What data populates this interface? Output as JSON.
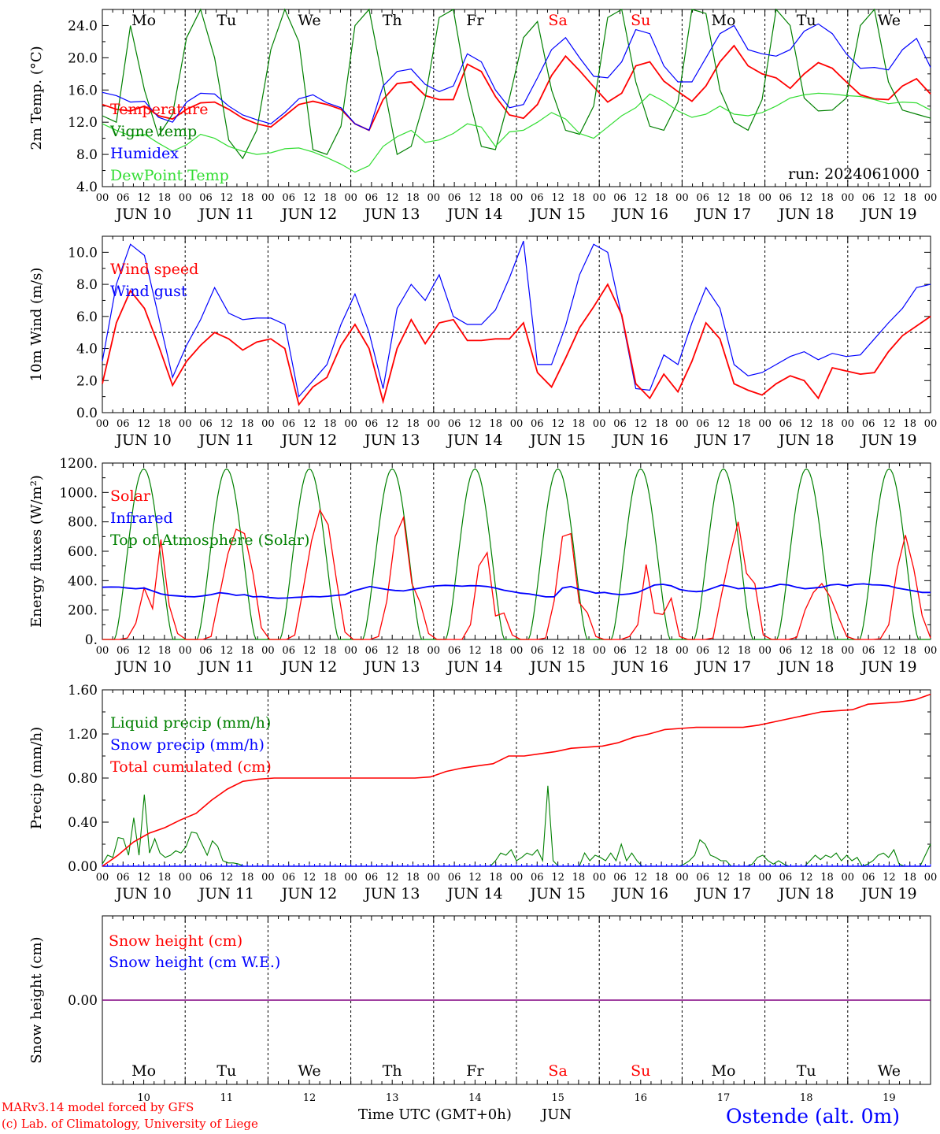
{
  "footer": {
    "credit_line1": "MARv3.14 model forced by GFS",
    "credit_line2": "(c) Lab. of Climatology, University of Liege",
    "time_label": "Time UTC (GMT+0h)",
    "month_label": "JUN",
    "location": "Ostende (alt. 0m)"
  },
  "colors": {
    "red": "#ff0000",
    "blue": "#0000ff",
    "dark_green": "#008000",
    "light_green": "#33dd33",
    "weekday_normal": "#000000",
    "weekday_weekend": "#ff0000",
    "snow_line": "#800080"
  },
  "days": {
    "weekdays": [
      "Mo",
      "Tu",
      "We",
      "Th",
      "Fr",
      "Sa",
      "Su",
      "Mo",
      "Tu",
      "We"
    ],
    "weekend_flags": [
      false,
      false,
      false,
      false,
      false,
      true,
      true,
      false,
      false,
      false
    ],
    "date_labels": [
      "JUN 10",
      "JUN 11",
      "JUN 12",
      "JUN 13",
      "JUN 14",
      "JUN 15",
      "JUN 16",
      "JUN 17",
      "JUN 18",
      "JUN 19"
    ],
    "day_numbers": [
      "10",
      "11",
      "12",
      "13",
      "14",
      "15",
      "16",
      "17",
      "18",
      "19"
    ],
    "hour_ticks": [
      "00",
      "06",
      "12",
      "18"
    ],
    "final_tick": "00"
  },
  "chart_data": [
    {
      "id": "temp",
      "type": "line",
      "ylabel": "2m Temp. (°C)",
      "ylim": [
        4.0,
        26.0
      ],
      "yticks": [
        "4.0",
        "8.0",
        "12.0",
        "16.0",
        "20.0",
        "24.0"
      ],
      "ytick_values": [
        4,
        8,
        12,
        16,
        20,
        24
      ],
      "annotation": "run: 2024061000",
      "x_hours_step": 6,
      "series": [
        {
          "name": "Temperature",
          "color": "#ff0000",
          "values": [
            14.2,
            13.6,
            13.4,
            14.0,
            12.8,
            12.4,
            13.6,
            14.4,
            14.5,
            13.6,
            12.5,
            11.8,
            11.4,
            12.8,
            14.2,
            14.6,
            14.2,
            13.6,
            11.8,
            11.0,
            14.8,
            16.8,
            17.0,
            15.3,
            14.8,
            14.8,
            19.2,
            18.3,
            15.2,
            12.9,
            12.5,
            14.2,
            17.8,
            20.2,
            18.4,
            16.4,
            14.5,
            15.6,
            19.0,
            19.5,
            17.1,
            15.8,
            14.6,
            16.5,
            19.5,
            21.5,
            19.0,
            18.0,
            17.5,
            16.2,
            18.0,
            19.4,
            18.7,
            17.0,
            15.4,
            14.9,
            14.8,
            16.5,
            17.4,
            15.5
          ]
        },
        {
          "name": "Vigne temp",
          "color": "#008000",
          "values": [
            12.8,
            12.0,
            24.0,
            16.0,
            10.3,
            13.0,
            22.5,
            29.0,
            20.0,
            9.8,
            7.5,
            11.0,
            21.0,
            29.0,
            22.0,
            8.6,
            8.0,
            11.5,
            24.0,
            26.0,
            17.0,
            8.0,
            9.0,
            15.0,
            25.0,
            26.0,
            16.0,
            9.0,
            8.6,
            15.0,
            22.5,
            24.5,
            16.0,
            11.0,
            10.5,
            14.0,
            25.0,
            27.0,
            17.0,
            11.5,
            11.0,
            14.5,
            26.5,
            25.5,
            16.0,
            12.0,
            11.0,
            14.8,
            27.0,
            24.0,
            15.0,
            13.4,
            13.5,
            15.0,
            24.0,
            26.0,
            17.0,
            13.5,
            13.0,
            12.5
          ]
        },
        {
          "name": "Humidex",
          "color": "#0000ff",
          "values": [
            15.7,
            15.3,
            14.5,
            14.6,
            12.6,
            12.0,
            14.5,
            15.6,
            15.5,
            14.0,
            12.9,
            12.3,
            11.8,
            13.2,
            14.9,
            15.4,
            14.4,
            13.8,
            11.8,
            11.0,
            16.5,
            18.3,
            18.6,
            16.7,
            15.8,
            16.5,
            20.5,
            19.5,
            16.0,
            13.8,
            14.2,
            17.5,
            21.0,
            22.5,
            20.0,
            17.7,
            17.5,
            19.5,
            23.5,
            23.0,
            19.0,
            17.0,
            17.0,
            20.0,
            23.0,
            24.0,
            21.0,
            20.5,
            20.2,
            21.0,
            23.3,
            24.2,
            23.0,
            20.5,
            18.7,
            18.8,
            18.5,
            21.0,
            22.4,
            18.8
          ]
        },
        {
          "name": "DewPoint Temp",
          "color": "#33dd33",
          "values": [
            11.8,
            11.0,
            10.3,
            10.5,
            9.4,
            8.4,
            9.2,
            10.5,
            10.0,
            9.0,
            8.4,
            8.0,
            8.2,
            8.7,
            8.8,
            8.3,
            7.6,
            6.8,
            5.8,
            6.6,
            9.0,
            10.2,
            11.0,
            9.5,
            9.8,
            10.6,
            11.8,
            11.4,
            9.0,
            10.8,
            11.0,
            12.0,
            13.2,
            12.4,
            10.6,
            10.0,
            11.4,
            12.8,
            13.8,
            15.5,
            14.6,
            13.4,
            12.6,
            13.0,
            14.0,
            13.0,
            12.8,
            13.2,
            14.0,
            15.0,
            15.4,
            15.6,
            15.5,
            15.3,
            15.2,
            14.8,
            14.3,
            14.5,
            14.4,
            13.5
          ]
        }
      ]
    },
    {
      "id": "wind",
      "type": "line",
      "ylabel": "10m Wind (m/s)",
      "ylim": [
        0.0,
        11.0
      ],
      "yticks": [
        "0.0",
        "2.0",
        "4.0",
        "6.0",
        "8.0",
        "10.0"
      ],
      "ytick_values": [
        0,
        2,
        4,
        6,
        8,
        10
      ],
      "reference_line": 5.0,
      "x_hours_step": 6,
      "series": [
        {
          "name": "Wind speed",
          "color": "#ff0000",
          "values": [
            1.8,
            5.6,
            7.6,
            6.5,
            4.2,
            1.7,
            3.2,
            4.2,
            5.0,
            4.6,
            3.9,
            4.4,
            4.6,
            4.0,
            0.5,
            1.6,
            2.2,
            4.2,
            5.5,
            4.0,
            0.7,
            4.0,
            5.8,
            4.3,
            5.6,
            5.8,
            4.5,
            4.5,
            4.6,
            4.6,
            5.6,
            2.5,
            1.6,
            3.4,
            5.3,
            6.6,
            8.0,
            6.1,
            1.8,
            0.9,
            2.4,
            1.3,
            3.2,
            5.6,
            4.6,
            1.8,
            1.4,
            1.1,
            1.8,
            2.3,
            2.0,
            0.9,
            2.8,
            2.6,
            2.4,
            2.5,
            3.8,
            4.8,
            5.4,
            6.0
          ]
        },
        {
          "name": "Wind gust",
          "color": "#0000ff",
          "values": [
            3.2,
            8.0,
            10.5,
            9.8,
            6.0,
            2.2,
            4.2,
            5.8,
            7.8,
            6.2,
            5.8,
            5.9,
            5.9,
            5.5,
            1.0,
            2.0,
            3.0,
            5.5,
            7.4,
            5.0,
            1.5,
            6.5,
            8.0,
            7.0,
            8.6,
            6.0,
            5.5,
            5.5,
            6.4,
            8.4,
            10.7,
            3.0,
            3.0,
            5.4,
            8.6,
            10.5,
            10.0,
            6.0,
            1.5,
            1.4,
            3.6,
            3.0,
            5.6,
            7.8,
            6.5,
            3.0,
            2.3,
            2.5,
            3.0,
            3.5,
            3.8,
            3.3,
            3.7,
            3.5,
            3.6,
            4.6,
            5.6,
            6.5,
            7.8,
            8.0
          ]
        }
      ]
    },
    {
      "id": "energy",
      "type": "line",
      "ylabel": "Energy fluxes (W/m²)",
      "ylim": [
        0,
        1200
      ],
      "yticks": [
        "0.",
        "200.",
        "400.",
        "600.",
        "800.",
        "1000.",
        "1200."
      ],
      "ytick_values": [
        0,
        200,
        400,
        600,
        800,
        1000,
        1200
      ],
      "x_hours_step": 6,
      "series": [
        {
          "name": "Solar",
          "color": "#ff0000",
          "values": [
            0,
            0,
            0,
            10,
            110,
            350,
            210,
            680,
            230,
            40,
            0,
            0,
            0,
            20,
            300,
            580,
            750,
            720,
            450,
            80,
            0,
            0,
            0,
            30,
            340,
            670,
            880,
            780,
            400,
            50,
            0,
            0,
            0,
            20,
            260,
            700,
            830,
            380,
            250,
            40,
            0,
            0,
            0,
            0,
            100,
            500,
            590,
            160,
            180,
            30,
            0,
            0,
            0,
            10,
            260,
            700,
            720,
            250,
            180,
            20,
            0,
            0,
            0,
            20,
            100,
            510,
            180,
            170,
            280,
            20,
            0,
            0,
            0,
            10,
            300,
            570,
            800,
            450,
            380,
            30,
            0,
            0,
            0,
            15,
            200,
            320,
            380,
            290,
            150,
            20,
            0,
            0,
            0,
            5,
            100,
            480,
            710,
            480,
            160,
            10
          ]
        },
        {
          "name": "Infrared",
          "color": "#0000ff",
          "values": [
            355,
            357,
            356,
            350,
            345,
            350,
            330,
            310,
            300,
            296,
            292,
            290,
            296,
            305,
            318,
            312,
            300,
            305,
            290,
            292,
            285,
            280,
            282,
            286,
            288,
            292,
            290,
            294,
            300,
            305,
            330,
            345,
            360,
            350,
            340,
            333,
            330,
            340,
            350,
            360,
            365,
            368,
            366,
            362,
            366,
            365,
            360,
            350,
            335,
            325,
            315,
            310,
            300,
            290,
            290,
            350,
            360,
            340,
            330,
            315,
            320,
            310,
            305,
            310,
            320,
            345,
            370,
            375,
            365,
            340,
            330,
            325,
            330,
            350,
            370,
            360,
            345,
            350,
            345,
            350,
            360,
            375,
            370,
            355,
            345,
            350,
            355,
            370,
            375,
            365,
            375,
            378,
            372,
            370,
            365,
            350,
            340,
            330,
            320,
            320
          ]
        },
        {
          "name": "Top of Atmosphere (Solar)",
          "color": "#008000",
          "peak": 1160
        }
      ]
    },
    {
      "id": "precip",
      "type": "line",
      "ylabel": "Precip (mm/h)",
      "ylim": [
        0.0,
        1.6
      ],
      "yticks": [
        "0.00",
        "0.40",
        "0.80",
        "1.20",
        "1.60"
      ],
      "ytick_values": [
        0,
        0.4,
        0.8,
        1.2,
        1.6
      ],
      "x_hours_step": 3,
      "series": [
        {
          "name": "Liquid precip (mm/h)",
          "color": "#008000",
          "values": [
            0.02,
            0.1,
            0.08,
            0.26,
            0.25,
            0.1,
            0.44,
            0.1,
            0.65,
            0.12,
            0.25,
            0.12,
            0.08,
            0.1,
            0.14,
            0.12,
            0.18,
            0.31,
            0.3,
            0.2,
            0.1,
            0.23,
            0.18,
            0.05,
            0.03,
            0.03,
            0.02,
            0,
            0,
            0,
            0,
            0,
            0,
            0,
            0,
            0,
            0,
            0,
            0,
            0,
            0,
            0,
            0,
            0,
            0,
            0,
            0,
            0,
            0,
            0,
            0,
            0,
            0,
            0,
            0,
            0,
            0,
            0,
            0,
            0,
            0,
            0,
            0,
            0,
            0,
            0,
            0,
            0,
            0,
            0,
            0,
            0,
            0,
            0,
            0,
            0.05,
            0.12,
            0.1,
            0.15,
            0.05,
            0.08,
            0.12,
            0.1,
            0.15,
            0.05,
            0.73,
            0.05,
            0,
            0,
            0,
            0,
            0,
            0.12,
            0.05,
            0.1,
            0.08,
            0.05,
            0.12,
            0.05,
            0.2,
            0.05,
            0.12,
            0.05,
            0,
            0,
            0,
            0,
            0,
            0,
            0,
            0,
            0.02,
            0.05,
            0.1,
            0.24,
            0.2,
            0.1,
            0.08,
            0.05,
            0.05,
            0,
            0,
            0,
            0,
            0.02,
            0.08,
            0.1,
            0.05,
            0.02,
            0.05,
            0.02,
            0,
            0,
            0,
            0,
            0.05,
            0.1,
            0.06,
            0.1,
            0.08,
            0.12,
            0.05,
            0.1,
            0.05,
            0.08,
            0,
            0.02,
            0.05,
            0.1,
            0.12,
            0.08,
            0.15,
            0.02,
            0,
            0,
            0,
            0,
            0.1,
            0.2
          ]
        },
        {
          "name": "Snow precip (mm/h)",
          "color": "#0000ff",
          "values": [
            0,
            0
          ]
        },
        {
          "name": "Total cumulated (cm)",
          "color": "#ff0000",
          "values": [
            0,
            0.1,
            0.22,
            0.3,
            0.35,
            0.42,
            0.48,
            0.6,
            0.7,
            0.77,
            0.79,
            0.8,
            0.8,
            0.8,
            0.8,
            0.8,
            0.8,
            0.8,
            0.8,
            0.8,
            0.8,
            0.81,
            0.86,
            0.89,
            0.91,
            0.93,
            1.0,
            1.0,
            1.02,
            1.04,
            1.07,
            1.08,
            1.09,
            1.12,
            1.17,
            1.2,
            1.24,
            1.25,
            1.26,
            1.26,
            1.26,
            1.26,
            1.28,
            1.31,
            1.34,
            1.37,
            1.4,
            1.41,
            1.42,
            1.47,
            1.48,
            1.49,
            1.51,
            1.56
          ]
        }
      ]
    },
    {
      "id": "snow",
      "type": "line",
      "ylabel": "Snow height (cm)",
      "yticks": [
        "0.00"
      ],
      "ytick_values": [
        0
      ],
      "series": [
        {
          "name": "Snow height (cm)",
          "color": "#ff0000",
          "values": [
            0,
            0
          ]
        },
        {
          "name": "Snow height (cm W.E.)",
          "color": "#0000ff",
          "values": [
            0,
            0
          ]
        }
      ]
    }
  ]
}
